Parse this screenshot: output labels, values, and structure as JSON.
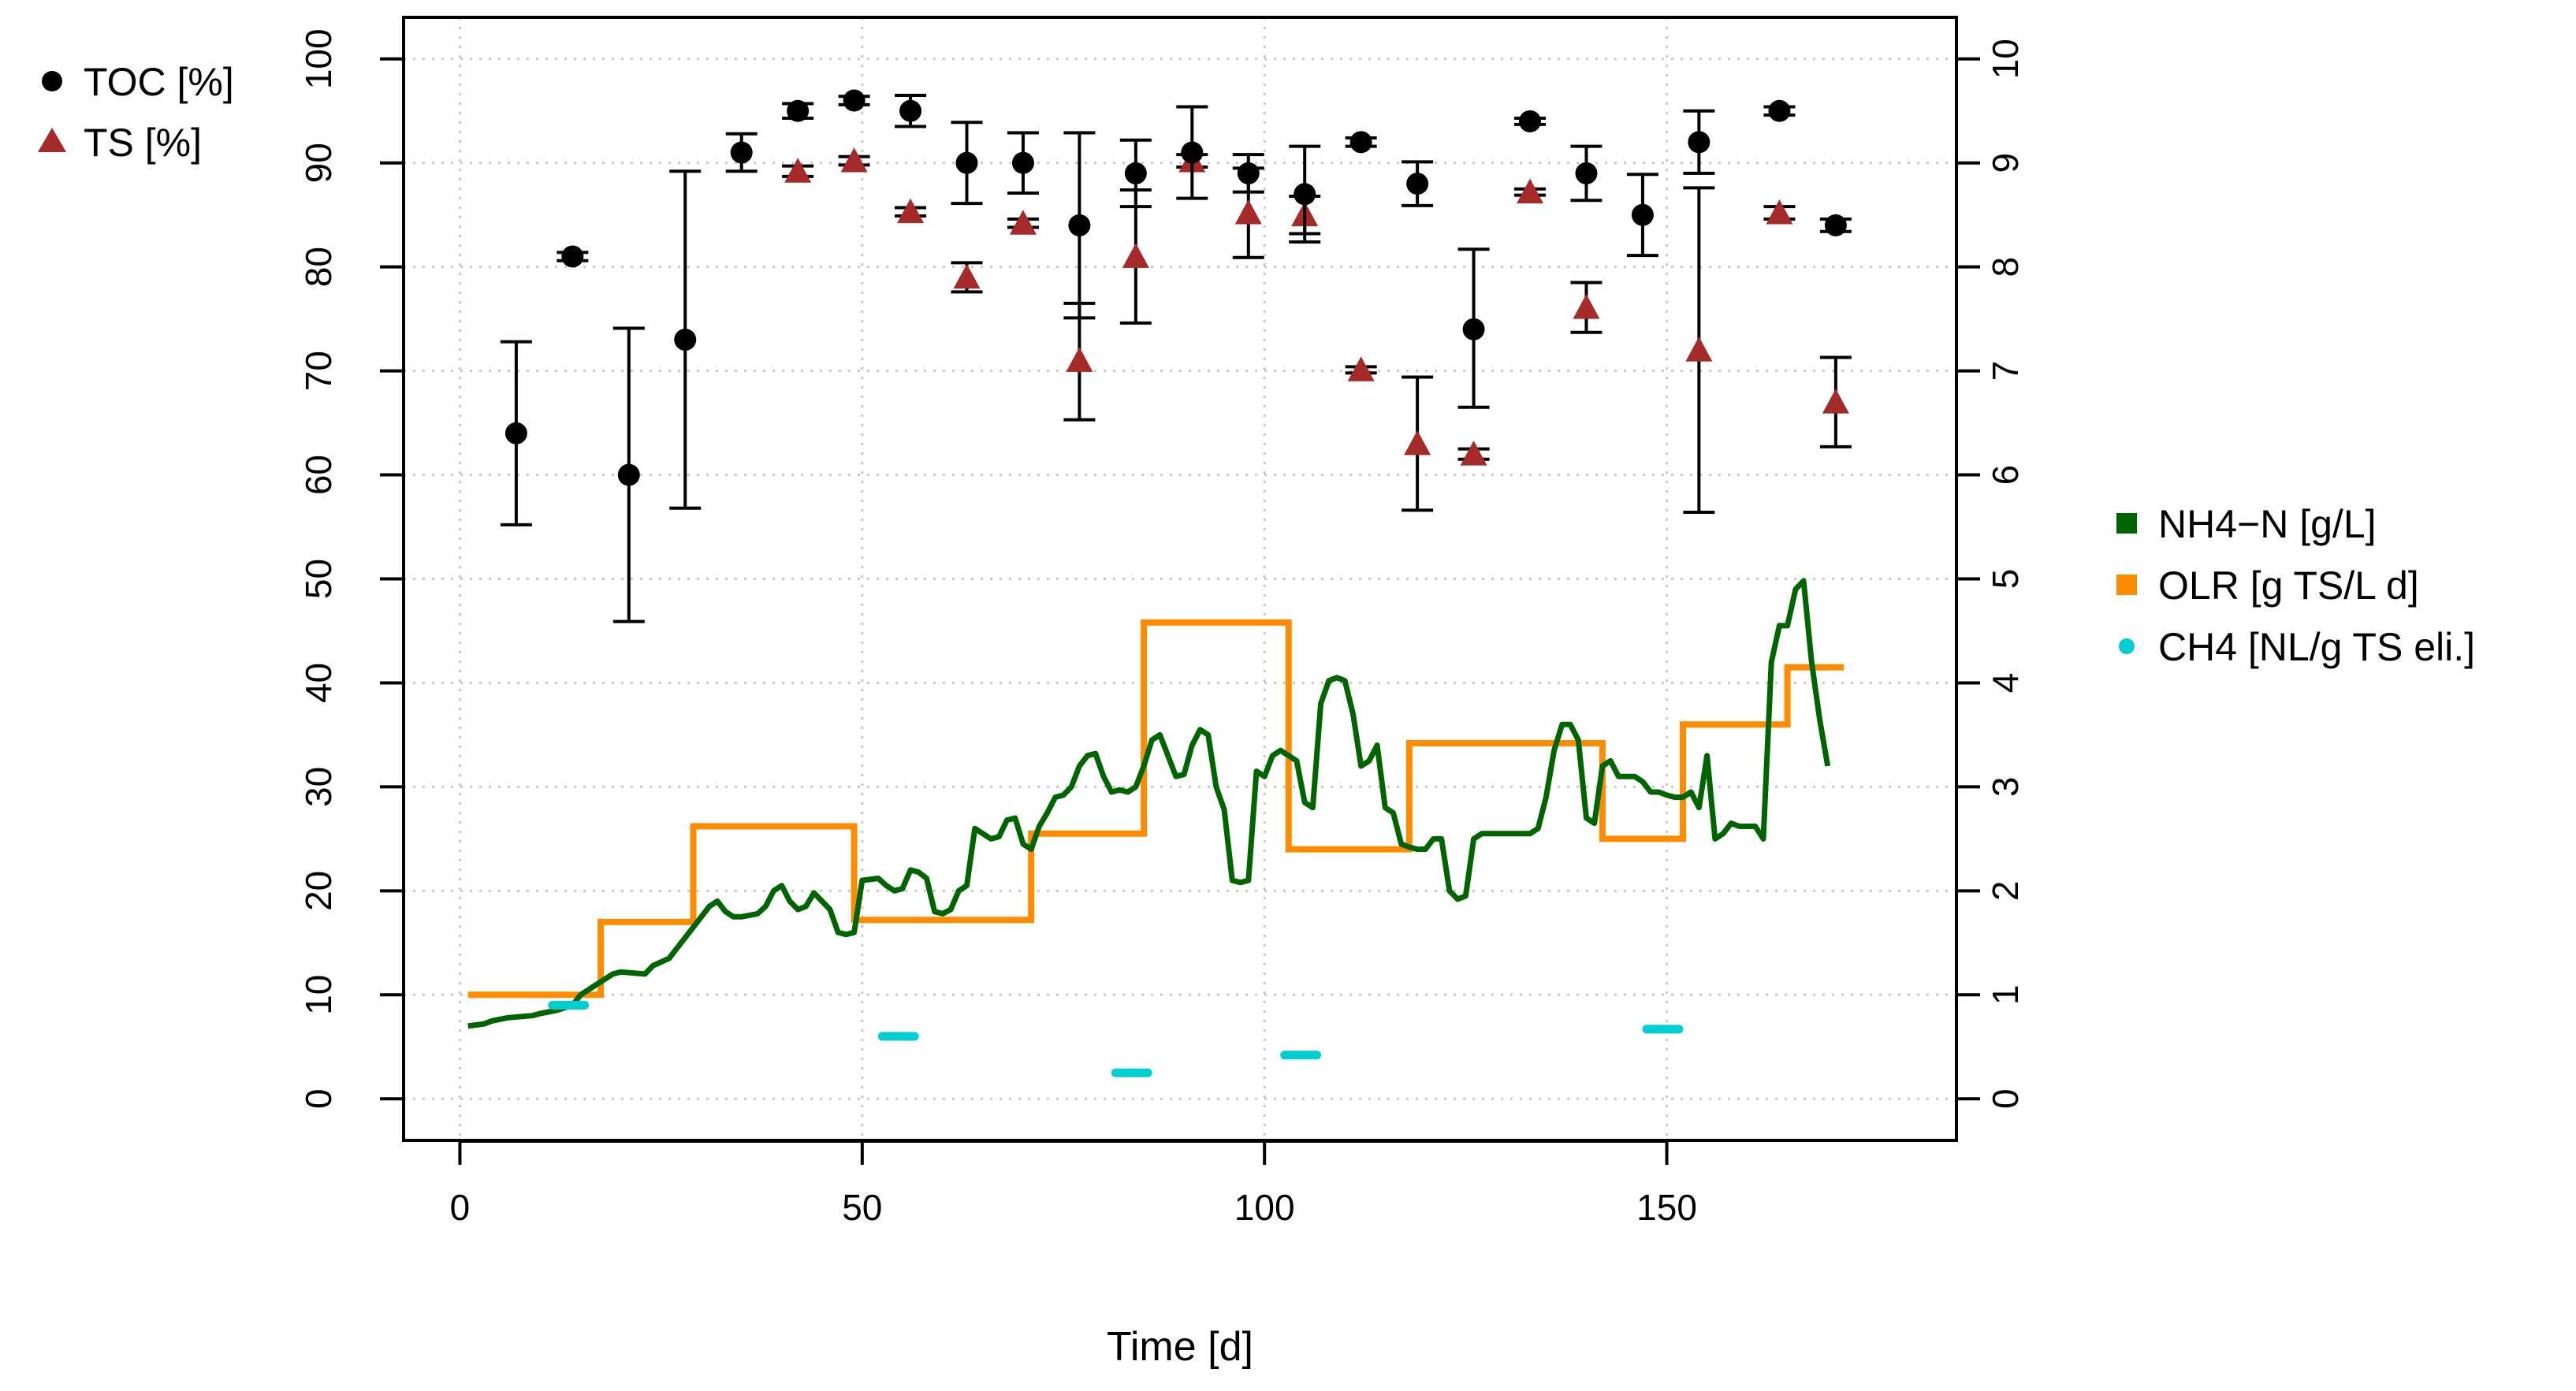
{
  "colors": {
    "toc": "#000000",
    "ts": "#a52a2a",
    "nh4": "#006400",
    "olr": "#ff8c00",
    "ch4": "#00ced1",
    "grid": "#c8c8c8"
  },
  "chart_data": {
    "type": "scatter+line",
    "xlabel": "Time [d]",
    "xlim": [
      -7,
      186
    ],
    "x_ticks": [
      0,
      50,
      100,
      150
    ],
    "y_left": {
      "label": "",
      "lim": [
        -4,
        104
      ],
      "ticks": [
        0,
        10,
        20,
        30,
        40,
        50,
        60,
        70,
        80,
        90,
        100
      ]
    },
    "y_right": {
      "label": "",
      "lim": [
        -0.4,
        10.4
      ],
      "ticks": [
        0,
        1,
        2,
        3,
        4,
        5,
        6,
        7,
        8,
        9,
        10
      ]
    },
    "grid": true,
    "legend_top": [
      {
        "name": "TOC [%]",
        "symbol": "circle",
        "color": "#000000"
      },
      {
        "name": "TS [%]",
        "symbol": "triangle",
        "color": "#a52a2a"
      }
    ],
    "legend_right": [
      {
        "name": "NH4−N [g/L]",
        "symbol": "square",
        "color": "#006400"
      },
      {
        "name": "OLR [g TS/L d]",
        "symbol": "square",
        "color": "#ff8c00"
      },
      {
        "name": "CH4 [NL/g TS eli.]",
        "symbol": "dot",
        "color": "#00ced1"
      }
    ],
    "toc": [
      {
        "x": 7,
        "y": 64,
        "lo": 55.2,
        "hi": 72.8
      },
      {
        "x": 14,
        "y": 81,
        "lo": 80.6,
        "hi": 81.4
      },
      {
        "x": 21,
        "y": 60,
        "lo": 45.9,
        "hi": 74.1
      },
      {
        "x": 28,
        "y": 73,
        "lo": 56.8,
        "hi": 89.2
      },
      {
        "x": 35,
        "y": 91,
        "lo": 89.2,
        "hi": 92.8
      },
      {
        "x": 42,
        "y": 95,
        "lo": 94.3,
        "hi": 95.7
      },
      {
        "x": 49,
        "y": 96,
        "lo": 95.6,
        "hi": 96.4
      },
      {
        "x": 56,
        "y": 95,
        "lo": 93.5,
        "hi": 96.5
      },
      {
        "x": 63,
        "y": 90,
        "lo": 86.1,
        "hi": 93.9
      },
      {
        "x": 70,
        "y": 90,
        "lo": 87.1,
        "hi": 92.9
      },
      {
        "x": 77,
        "y": 84,
        "lo": 75.1,
        "hi": 92.9
      },
      {
        "x": 84,
        "y": 89,
        "lo": 85.8,
        "hi": 92.2
      },
      {
        "x": 91,
        "y": 91,
        "lo": 86.6,
        "hi": 95.4
      },
      {
        "x": 98,
        "y": 89,
        "lo": 87.2,
        "hi": 90.8
      },
      {
        "x": 105,
        "y": 87,
        "lo": 82.4,
        "hi": 91.6
      },
      {
        "x": 112,
        "y": 92,
        "lo": 91.6,
        "hi": 92.4
      },
      {
        "x": 119,
        "y": 88,
        "lo": 85.9,
        "hi": 90.1
      },
      {
        "x": 126,
        "y": 74,
        "lo": 66.5,
        "hi": 81.7
      },
      {
        "x": 133,
        "y": 94,
        "lo": 93.7,
        "hi": 94.3
      },
      {
        "x": 140,
        "y": 89,
        "lo": 86.4,
        "hi": 91.6
      },
      {
        "x": 147,
        "y": 85,
        "lo": 81.1,
        "hi": 88.9
      },
      {
        "x": 154,
        "y": 92,
        "lo": 89.0,
        "hi": 95.0
      },
      {
        "x": 164,
        "y": 95,
        "lo": 94.6,
        "hi": 95.4
      },
      {
        "x": 171,
        "y": 84,
        "lo": 83.4,
        "hi": 84.6
      }
    ],
    "ts": [
      {
        "x": 42,
        "y": 89.2,
        "lo": 88.7,
        "hi": 89.7
      },
      {
        "x": 49,
        "y": 90.2,
        "lo": 89.8,
        "hi": 90.6
      },
      {
        "x": 56,
        "y": 85.3,
        "lo": 84.9,
        "hi": 85.7
      },
      {
        "x": 63,
        "y": 79.0,
        "lo": 77.6,
        "hi": 80.4
      },
      {
        "x": 70,
        "y": 84.2,
        "lo": 83.8,
        "hi": 84.6
      },
      {
        "x": 77,
        "y": 71.0,
        "lo": 65.3,
        "hi": 76.5
      },
      {
        "x": 84,
        "y": 81.0,
        "lo": 74.6,
        "hi": 87.4
      },
      {
        "x": 91,
        "y": 90.2,
        "lo": 89.6,
        "hi": 90.8
      },
      {
        "x": 98,
        "y": 85.2,
        "lo": 80.9,
        "hi": 89.5
      },
      {
        "x": 105,
        "y": 85.0,
        "lo": 83.2,
        "hi": 86.8
      },
      {
        "x": 112,
        "y": 70.1,
        "lo": 69.8,
        "hi": 70.4
      },
      {
        "x": 119,
        "y": 63.0,
        "lo": 56.6,
        "hi": 69.4
      },
      {
        "x": 126,
        "y": 62.0,
        "lo": 61.5,
        "hi": 62.5
      },
      {
        "x": 133,
        "y": 87.2,
        "lo": 86.9,
        "hi": 87.5
      },
      {
        "x": 140,
        "y": 76.1,
        "lo": 73.7,
        "hi": 78.5
      },
      {
        "x": 154,
        "y": 72.0,
        "lo": 56.4,
        "hi": 87.6
      },
      {
        "x": 164,
        "y": 85.2,
        "lo": 84.6,
        "hi": 85.8
      },
      {
        "x": 171,
        "y": 67.0,
        "lo": 62.7,
        "hi": 71.3
      }
    ],
    "nh4": [
      [
        1,
        0.7
      ],
      [
        3,
        0.72
      ],
      [
        4,
        0.75
      ],
      [
        6,
        0.78
      ],
      [
        9,
        0.8
      ],
      [
        10,
        0.82
      ],
      [
        12,
        0.85
      ],
      [
        14,
        0.9
      ],
      [
        15,
        1.0
      ],
      [
        16,
        1.05
      ],
      [
        18,
        1.15
      ],
      [
        19,
        1.2
      ],
      [
        20,
        1.22
      ],
      [
        23,
        1.2
      ],
      [
        24,
        1.28
      ],
      [
        26,
        1.35
      ],
      [
        27,
        1.45
      ],
      [
        28,
        1.55
      ],
      [
        29,
        1.65
      ],
      [
        30,
        1.75
      ],
      [
        31,
        1.85
      ],
      [
        32,
        1.9
      ],
      [
        33,
        1.8
      ],
      [
        34,
        1.75
      ],
      [
        35,
        1.75
      ],
      [
        37,
        1.78
      ],
      [
        38,
        1.85
      ],
      [
        39,
        2.0
      ],
      [
        40,
        2.05
      ],
      [
        41,
        1.9
      ],
      [
        42,
        1.82
      ],
      [
        43,
        1.85
      ],
      [
        44,
        1.98
      ],
      [
        45,
        1.9
      ],
      [
        46,
        1.82
      ],
      [
        47,
        1.6
      ],
      [
        48,
        1.58
      ],
      [
        49,
        1.6
      ],
      [
        50,
        2.1
      ],
      [
        52,
        2.12
      ],
      [
        53,
        2.05
      ],
      [
        54,
        2.0
      ],
      [
        55,
        2.02
      ],
      [
        56,
        2.2
      ],
      [
        57,
        2.18
      ],
      [
        58,
        2.12
      ],
      [
        59,
        1.8
      ],
      [
        60,
        1.78
      ],
      [
        61,
        1.82
      ],
      [
        62,
        2.0
      ],
      [
        63,
        2.05
      ],
      [
        64,
        2.6
      ],
      [
        65,
        2.55
      ],
      [
        66,
        2.5
      ],
      [
        67,
        2.52
      ],
      [
        68,
        2.68
      ],
      [
        69,
        2.7
      ],
      [
        70,
        2.45
      ],
      [
        71,
        2.4
      ],
      [
        72,
        2.62
      ],
      [
        73,
        2.75
      ],
      [
        74,
        2.9
      ],
      [
        75,
        2.92
      ],
      [
        76,
        3.0
      ],
      [
        77,
        3.2
      ],
      [
        78,
        3.3
      ],
      [
        79,
        3.32
      ],
      [
        80,
        3.1
      ],
      [
        81,
        2.95
      ],
      [
        82,
        2.97
      ],
      [
        83,
        2.95
      ],
      [
        84,
        3.0
      ],
      [
        85,
        3.2
      ],
      [
        86,
        3.45
      ],
      [
        87,
        3.5
      ],
      [
        88,
        3.3
      ],
      [
        89,
        3.1
      ],
      [
        90,
        3.12
      ],
      [
        91,
        3.4
      ],
      [
        92,
        3.55
      ],
      [
        93,
        3.5
      ],
      [
        94,
        3.0
      ],
      [
        95,
        2.78
      ],
      [
        96,
        2.1
      ],
      [
        97,
        2.08
      ],
      [
        98,
        2.1
      ],
      [
        99,
        3.15
      ],
      [
        100,
        3.1
      ],
      [
        101,
        3.3
      ],
      [
        102,
        3.35
      ],
      [
        103,
        3.3
      ],
      [
        104,
        3.25
      ],
      [
        105,
        2.85
      ],
      [
        106,
        2.8
      ],
      [
        107,
        3.8
      ],
      [
        108,
        4.02
      ],
      [
        109,
        4.05
      ],
      [
        110,
        4.02
      ],
      [
        111,
        3.7
      ],
      [
        112,
        3.2
      ],
      [
        113,
        3.25
      ],
      [
        114,
        3.4
      ],
      [
        115,
        2.8
      ],
      [
        116,
        2.75
      ],
      [
        117,
        2.45
      ],
      [
        118,
        2.42
      ],
      [
        119,
        2.4
      ],
      [
        120,
        2.4
      ],
      [
        121,
        2.5
      ],
      [
        122,
        2.5
      ],
      [
        123,
        2.0
      ],
      [
        124,
        1.92
      ],
      [
        125,
        1.95
      ],
      [
        126,
        2.5
      ],
      [
        127,
        2.55
      ],
      [
        132,
        2.55
      ],
      [
        133,
        2.55
      ],
      [
        134,
        2.6
      ],
      [
        135,
        2.9
      ],
      [
        136,
        3.35
      ],
      [
        137,
        3.6
      ],
      [
        138,
        3.6
      ],
      [
        139,
        3.45
      ],
      [
        140,
        2.7
      ],
      [
        141,
        2.65
      ],
      [
        142,
        3.2
      ],
      [
        143,
        3.25
      ],
      [
        144,
        3.1
      ],
      [
        146,
        3.1
      ],
      [
        147,
        3.05
      ],
      [
        148,
        2.95
      ],
      [
        149,
        2.95
      ],
      [
        150,
        2.92
      ],
      [
        151,
        2.9
      ],
      [
        152,
        2.9
      ],
      [
        153,
        2.95
      ],
      [
        154,
        2.8
      ],
      [
        155,
        3.3
      ],
      [
        156,
        2.5
      ],
      [
        157,
        2.55
      ],
      [
        158,
        2.65
      ],
      [
        159,
        2.62
      ],
      [
        160,
        2.62
      ],
      [
        161,
        2.62
      ],
      [
        162,
        2.5
      ],
      [
        163,
        4.2
      ],
      [
        164,
        4.55
      ],
      [
        165,
        4.55
      ],
      [
        166,
        4.9
      ],
      [
        167,
        4.98
      ],
      [
        168,
        4.2
      ],
      [
        169,
        3.65
      ],
      [
        170,
        3.2
      ]
    ],
    "olr": [
      [
        1,
        1.0
      ],
      [
        17.5,
        1.0
      ],
      [
        17.5,
        1.7
      ],
      [
        29,
        1.7
      ],
      [
        29,
        2.62
      ],
      [
        49,
        2.62
      ],
      [
        49,
        1.72
      ],
      [
        71,
        1.72
      ],
      [
        71,
        2.55
      ],
      [
        85,
        2.55
      ],
      [
        85,
        4.58
      ],
      [
        103,
        4.58
      ],
      [
        103,
        2.4
      ],
      [
        118,
        2.4
      ],
      [
        118,
        3.42
      ],
      [
        142,
        3.42
      ],
      [
        142,
        2.5
      ],
      [
        152,
        2.5
      ],
      [
        152,
        3.6
      ],
      [
        165,
        3.6
      ],
      [
        165,
        4.15
      ],
      [
        172,
        4.15
      ]
    ],
    "ch4": [
      {
        "x0": 11.5,
        "x1": 15.5,
        "y": 0.9
      },
      {
        "x0": 52.5,
        "x1": 56.5,
        "y": 0.6
      },
      {
        "x0": 81.5,
        "x1": 85.5,
        "y": 0.25
      },
      {
        "x0": 102.5,
        "x1": 106.5,
        "y": 0.42
      },
      {
        "x0": 147.5,
        "x1": 151.5,
        "y": 0.67
      }
    ]
  }
}
